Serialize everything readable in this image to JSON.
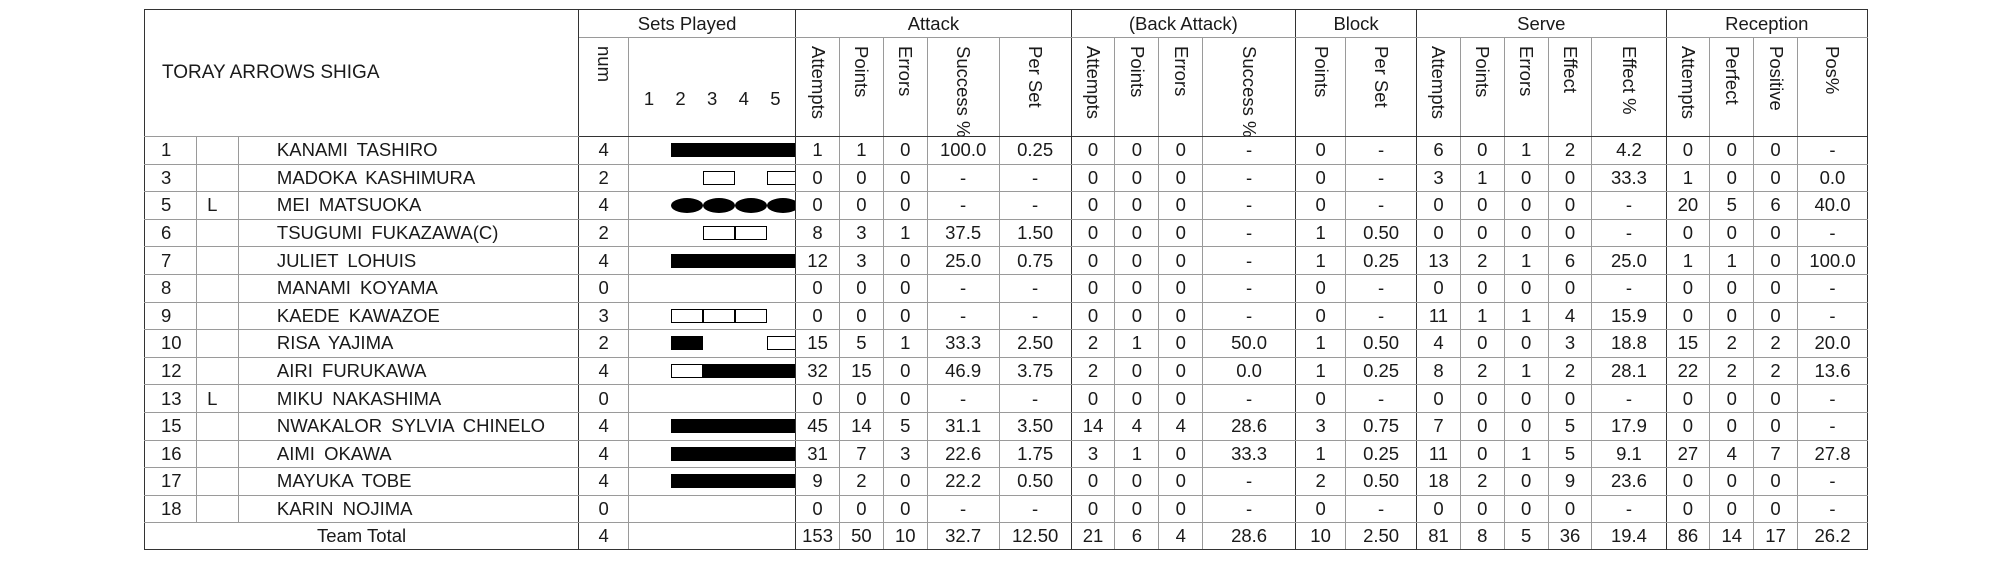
{
  "team_name": "TORAY ARROWS SHIGA",
  "groups": {
    "sets_played": "Sets Played",
    "attack": "Attack",
    "back_attack": "(Back Attack)",
    "block": "Block",
    "serve": "Serve",
    "reception": "Reception"
  },
  "sub": {
    "num": "num",
    "set_numbers": [
      "1",
      "2",
      "3",
      "4",
      "5"
    ],
    "attack": [
      "Attempts",
      "Points",
      "Errors",
      "Success %",
      "Per Set"
    ],
    "back_attack": [
      "Attempts",
      "Points",
      "Errors",
      "Success %"
    ],
    "block": [
      "Points",
      "Per Set"
    ],
    "serve": [
      "Attempts",
      "Points",
      "Errors",
      "Effect",
      "Effect %"
    ],
    "reception": [
      "Attempts",
      "Perfect",
      "Positive",
      "Pos%"
    ]
  },
  "players": [
    {
      "no": "1",
      "lib": "",
      "name": "KANAMI  TASHIRO",
      "num": "4",
      "sets": [
        "full",
        "full",
        "full",
        "full",
        "none"
      ],
      "attack": [
        "1",
        "1",
        "0",
        "100.0",
        "0.25"
      ],
      "back": [
        "0",
        "0",
        "0",
        "-"
      ],
      "block": [
        "0",
        "-"
      ],
      "serve": [
        "6",
        "0",
        "1",
        "2",
        "4.2"
      ],
      "rec": [
        "0",
        "0",
        "0",
        "-"
      ]
    },
    {
      "no": "3",
      "lib": "",
      "name": "MADOKA  KASHIMURA",
      "num": "2",
      "sets": [
        "none",
        "empty",
        "none",
        "empty",
        "none"
      ],
      "attack": [
        "0",
        "0",
        "0",
        "-",
        "-"
      ],
      "back": [
        "0",
        "0",
        "0",
        "-"
      ],
      "block": [
        "0",
        "-"
      ],
      "serve": [
        "3",
        "1",
        "0",
        "0",
        "33.3"
      ],
      "rec": [
        "1",
        "0",
        "0",
        "0.0"
      ]
    },
    {
      "no": "5",
      "lib": "L",
      "name": "MEI  MATSUOKA",
      "num": "4",
      "sets": [
        "circle",
        "circle",
        "circle",
        "circle",
        "none"
      ],
      "attack": [
        "0",
        "0",
        "0",
        "-",
        "-"
      ],
      "back": [
        "0",
        "0",
        "0",
        "-"
      ],
      "block": [
        "0",
        "-"
      ],
      "serve": [
        "0",
        "0",
        "0",
        "0",
        "-"
      ],
      "rec": [
        "20",
        "5",
        "6",
        "40.0"
      ]
    },
    {
      "no": "6",
      "lib": "",
      "name": "TSUGUMI  FUKAZAWA(C)",
      "num": "2",
      "sets": [
        "none",
        "empty",
        "empty",
        "none",
        "none"
      ],
      "attack": [
        "8",
        "3",
        "1",
        "37.5",
        "1.50"
      ],
      "back": [
        "0",
        "0",
        "0",
        "-"
      ],
      "block": [
        "1",
        "0.50"
      ],
      "serve": [
        "0",
        "0",
        "0",
        "0",
        "-"
      ],
      "rec": [
        "0",
        "0",
        "0",
        "-"
      ]
    },
    {
      "no": "7",
      "lib": "",
      "name": "JULIET  LOHUIS",
      "num": "4",
      "sets": [
        "full",
        "full",
        "full",
        "full",
        "none"
      ],
      "attack": [
        "12",
        "3",
        "0",
        "25.0",
        "0.75"
      ],
      "back": [
        "0",
        "0",
        "0",
        "-"
      ],
      "block": [
        "1",
        "0.25"
      ],
      "serve": [
        "13",
        "2",
        "1",
        "6",
        "25.0"
      ],
      "rec": [
        "1",
        "1",
        "0",
        "100.0"
      ]
    },
    {
      "no": "8",
      "lib": "",
      "name": "MANAMI  KOYAMA",
      "num": "0",
      "sets": [
        "none",
        "none",
        "none",
        "none",
        "none"
      ],
      "attack": [
        "0",
        "0",
        "0",
        "-",
        "-"
      ],
      "back": [
        "0",
        "0",
        "0",
        "-"
      ],
      "block": [
        "0",
        "-"
      ],
      "serve": [
        "0",
        "0",
        "0",
        "0",
        "-"
      ],
      "rec": [
        "0",
        "0",
        "0",
        "-"
      ]
    },
    {
      "no": "9",
      "lib": "",
      "name": "KAEDE  KAWAZOE",
      "num": "3",
      "sets": [
        "empty",
        "empty",
        "empty",
        "none",
        "none"
      ],
      "attack": [
        "0",
        "0",
        "0",
        "-",
        "-"
      ],
      "back": [
        "0",
        "0",
        "0",
        "-"
      ],
      "block": [
        "0",
        "-"
      ],
      "serve": [
        "11",
        "1",
        "1",
        "4",
        "15.9"
      ],
      "rec": [
        "0",
        "0",
        "0",
        "-"
      ]
    },
    {
      "no": "10",
      "lib": "",
      "name": "RISA  YAJIMA",
      "num": "2",
      "sets": [
        "full",
        "none",
        "none",
        "empty",
        "none"
      ],
      "attack": [
        "15",
        "5",
        "1",
        "33.3",
        "2.50"
      ],
      "back": [
        "2",
        "1",
        "0",
        "50.0"
      ],
      "block": [
        "1",
        "0.50"
      ],
      "serve": [
        "4",
        "0",
        "0",
        "3",
        "18.8"
      ],
      "rec": [
        "15",
        "2",
        "2",
        "20.0"
      ]
    },
    {
      "no": "12",
      "lib": "",
      "name": "AIRI  FURUKAWA",
      "num": "4",
      "sets": [
        "empty",
        "full",
        "full",
        "full",
        "none"
      ],
      "attack": [
        "32",
        "15",
        "0",
        "46.9",
        "3.75"
      ],
      "back": [
        "2",
        "0",
        "0",
        "0.0"
      ],
      "block": [
        "1",
        "0.25"
      ],
      "serve": [
        "8",
        "2",
        "1",
        "2",
        "28.1"
      ],
      "rec": [
        "22",
        "2",
        "2",
        "13.6"
      ]
    },
    {
      "no": "13",
      "lib": "L",
      "name": "MIKU  NAKASHIMA",
      "num": "0",
      "sets": [
        "none",
        "none",
        "none",
        "none",
        "none"
      ],
      "attack": [
        "0",
        "0",
        "0",
        "-",
        "-"
      ],
      "back": [
        "0",
        "0",
        "0",
        "-"
      ],
      "block": [
        "0",
        "-"
      ],
      "serve": [
        "0",
        "0",
        "0",
        "0",
        "-"
      ],
      "rec": [
        "0",
        "0",
        "0",
        "-"
      ]
    },
    {
      "no": "15",
      "lib": "",
      "name": "NWAKALOR  SYLVIA CHINELO",
      "num": "4",
      "sets": [
        "full",
        "full",
        "full",
        "full",
        "none"
      ],
      "attack": [
        "45",
        "14",
        "5",
        "31.1",
        "3.50"
      ],
      "back": [
        "14",
        "4",
        "4",
        "28.6"
      ],
      "block": [
        "3",
        "0.75"
      ],
      "serve": [
        "7",
        "0",
        "0",
        "5",
        "17.9"
      ],
      "rec": [
        "0",
        "0",
        "0",
        "-"
      ]
    },
    {
      "no": "16",
      "lib": "",
      "name": "AIMI  OKAWA",
      "num": "4",
      "sets": [
        "full",
        "full",
        "full",
        "full",
        "none"
      ],
      "attack": [
        "31",
        "7",
        "3",
        "22.6",
        "1.75"
      ],
      "back": [
        "3",
        "1",
        "0",
        "33.3"
      ],
      "block": [
        "1",
        "0.25"
      ],
      "serve": [
        "11",
        "0",
        "1",
        "5",
        "9.1"
      ],
      "rec": [
        "27",
        "4",
        "7",
        "27.8"
      ]
    },
    {
      "no": "17",
      "lib": "",
      "name": "MAYUKA  TOBE",
      "num": "4",
      "sets": [
        "full",
        "full",
        "full",
        "full",
        "none"
      ],
      "attack": [
        "9",
        "2",
        "0",
        "22.2",
        "0.50"
      ],
      "back": [
        "0",
        "0",
        "0",
        "-"
      ],
      "block": [
        "2",
        "0.50"
      ],
      "serve": [
        "18",
        "2",
        "0",
        "9",
        "23.6"
      ],
      "rec": [
        "0",
        "0",
        "0",
        "-"
      ]
    },
    {
      "no": "18",
      "lib": "",
      "name": "KARIN  NOJIMA",
      "num": "0",
      "sets": [
        "none",
        "none",
        "none",
        "none",
        "none"
      ],
      "attack": [
        "0",
        "0",
        "0",
        "-",
        "-"
      ],
      "back": [
        "0",
        "0",
        "0",
        "-"
      ],
      "block": [
        "0",
        "-"
      ],
      "serve": [
        "0",
        "0",
        "0",
        "0",
        "-"
      ],
      "rec": [
        "0",
        "0",
        "0",
        "-"
      ]
    }
  ],
  "total": {
    "label": "Team Total",
    "num": "4",
    "attack": [
      "153",
      "50",
      "10",
      "32.7",
      "12.50"
    ],
    "back": [
      "21",
      "6",
      "4",
      "28.6"
    ],
    "block": [
      "10",
      "2.50"
    ],
    "serve": [
      "81",
      "8",
      "5",
      "36",
      "19.4"
    ],
    "rec": [
      "86",
      "14",
      "17",
      "26.2"
    ]
  }
}
